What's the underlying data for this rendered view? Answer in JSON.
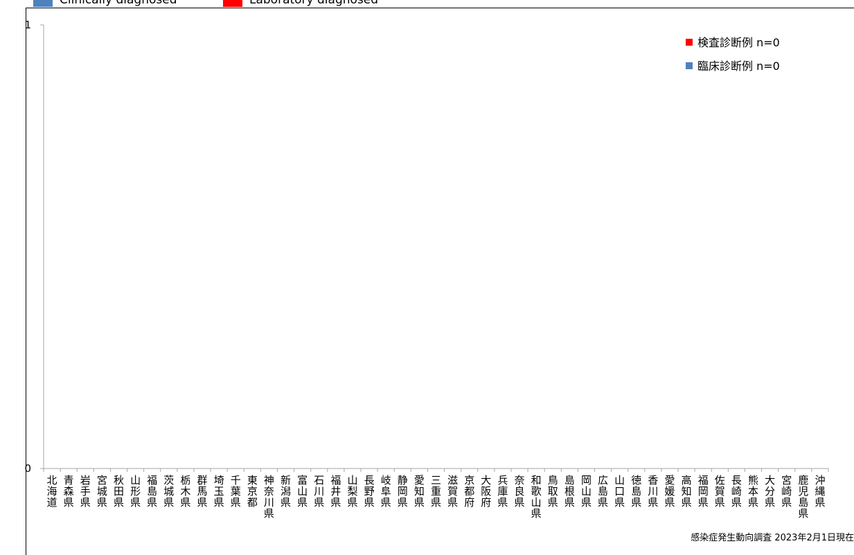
{
  "top_legend": [
    {
      "label": "Clinically diagnosed",
      "color": "#4f81bd"
    },
    {
      "label": "Laboratory diagnosed",
      "color": "#ff0000"
    }
  ],
  "footnote": "感染症発生動向調査 2023年2月1日現在",
  "chart_data": {
    "type": "bar",
    "title": "",
    "xlabel": "",
    "ylabel": "",
    "ylim": [
      0,
      1
    ],
    "yticks": [
      "0",
      "1"
    ],
    "grid": false,
    "legend_position": "top-right",
    "categories": [
      "北海道",
      "青森県",
      "岩手県",
      "宮城県",
      "秋田県",
      "山形県",
      "福島県",
      "茨城県",
      "栃木県",
      "群馬県",
      "埼玉県",
      "千葉県",
      "東京都",
      "神奈川県",
      "新潟県",
      "富山県",
      "石川県",
      "福井県",
      "山梨県",
      "長野県",
      "岐阜県",
      "静岡県",
      "愛知県",
      "三重県",
      "滋賀県",
      "京都府",
      "大阪府",
      "兵庫県",
      "奈良県",
      "和歌山県",
      "鳥取県",
      "島根県",
      "岡山県",
      "広島県",
      "山口県",
      "徳島県",
      "香川県",
      "愛媛県",
      "高知県",
      "福岡県",
      "佐賀県",
      "長崎県",
      "熊本県",
      "大分県",
      "宮崎県",
      "鹿児島県",
      "沖縄県"
    ],
    "series": [
      {
        "name": "検査診断例 n=0",
        "color": "#ff0000",
        "values": [
          0,
          0,
          0,
          0,
          0,
          0,
          0,
          0,
          0,
          0,
          0,
          0,
          0,
          0,
          0,
          0,
          0,
          0,
          0,
          0,
          0,
          0,
          0,
          0,
          0,
          0,
          0,
          0,
          0,
          0,
          0,
          0,
          0,
          0,
          0,
          0,
          0,
          0,
          0,
          0,
          0,
          0,
          0,
          0,
          0,
          0,
          0
        ]
      },
      {
        "name": "臨床診断例 n=0",
        "color": "#4f81bd",
        "values": [
          0,
          0,
          0,
          0,
          0,
          0,
          0,
          0,
          0,
          0,
          0,
          0,
          0,
          0,
          0,
          0,
          0,
          0,
          0,
          0,
          0,
          0,
          0,
          0,
          0,
          0,
          0,
          0,
          0,
          0,
          0,
          0,
          0,
          0,
          0,
          0,
          0,
          0,
          0,
          0,
          0,
          0,
          0,
          0,
          0,
          0,
          0
        ]
      }
    ]
  }
}
